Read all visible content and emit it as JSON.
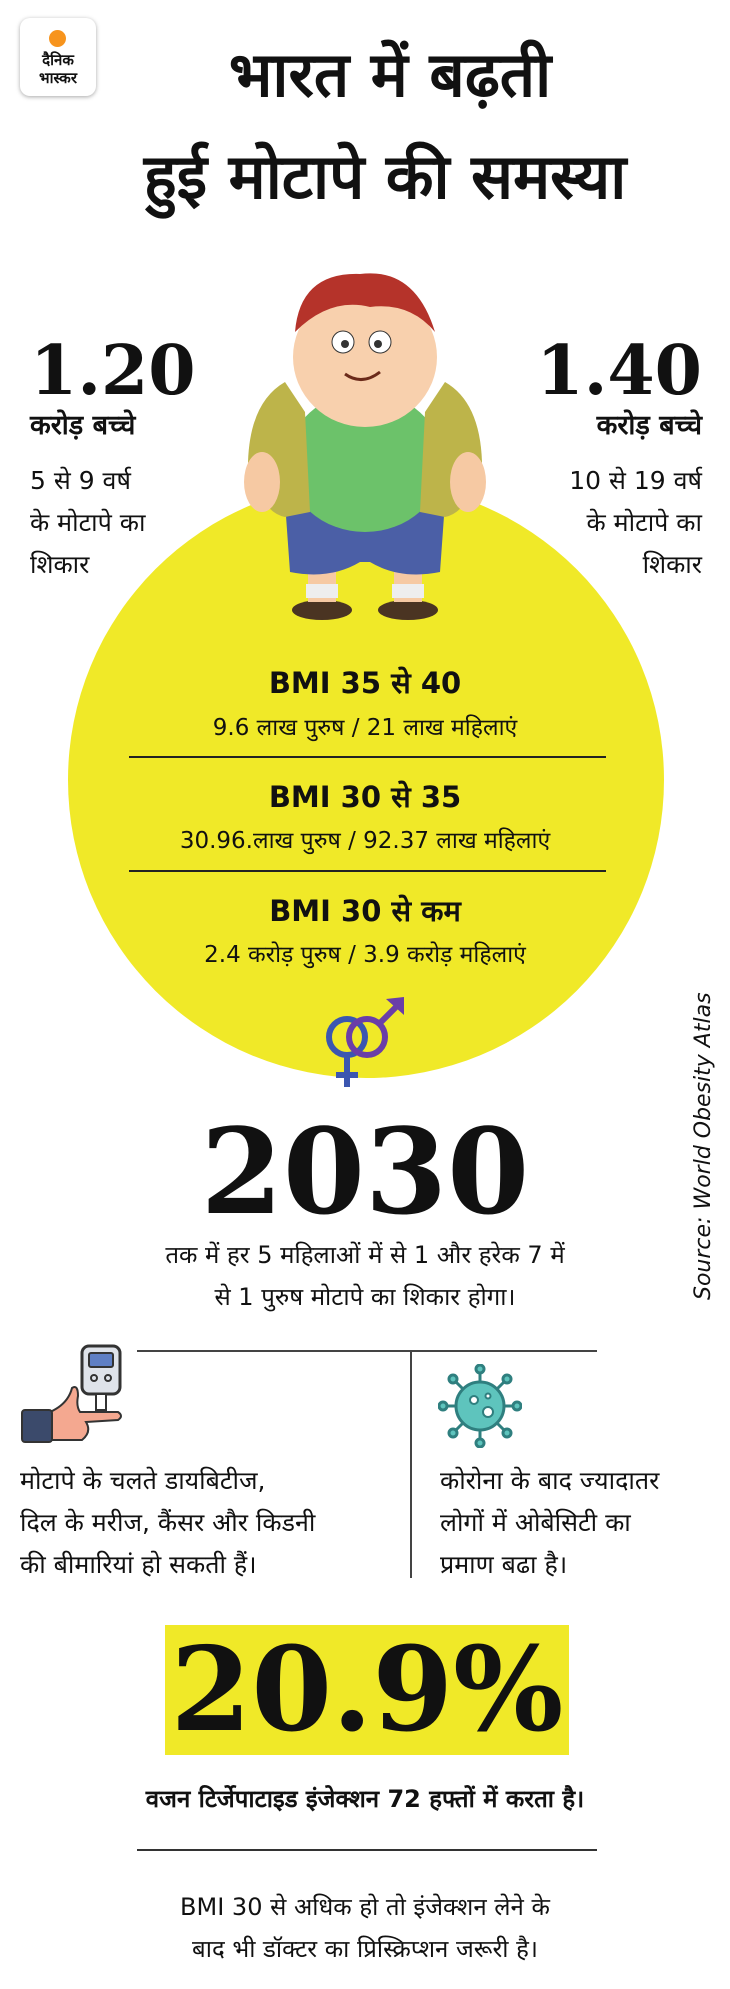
{
  "brand": {
    "line1": "दैनिक",
    "line2": "भास्कर",
    "accent": "#f7941d"
  },
  "title": {
    "line1": "भारत में बढ़ती",
    "line2": "हुई मोटापे की समस्या"
  },
  "stats": [
    {
      "number": "1.20",
      "unit": "करोड़ बच्चे",
      "desc": [
        "5 से 9 वर्ष",
        "के मोटापे का",
        "शिकार"
      ]
    },
    {
      "number": "1.40",
      "unit": "करोड़ बच्चे",
      "desc": [
        "10 से 19 वर्ष",
        "के मोटापे का",
        "शिकार"
      ]
    }
  ],
  "bmi": [
    {
      "heading": "BMI 35 से 40",
      "detail": "9.6 लाख पुरुष / 21 लाख महिलाएं"
    },
    {
      "heading": "BMI 30 से 35",
      "detail": "30.96.लाख पुरुष / 92.37 लाख महिलाएं"
    },
    {
      "heading": "BMI 30 से कम",
      "detail": "2.4 करोड़ पुरुष / 3.9 करोड़ महिलाएं"
    }
  ],
  "projection": {
    "year": "2030",
    "text": [
      "तक में हर 5 महिलाओं में से 1 और हरेक 7 में",
      "से 1 पुरुष मोटापे का शिकार होगा।"
    ]
  },
  "source": "Source: World Obesity Atlas",
  "facts": {
    "left": [
      "मोटापे के चलते डायबिटीज,",
      "दिल के मरीज, कैंसर और किडनी",
      "की बीमारियां हो सकती हैं।"
    ],
    "right": [
      "कोरोना के बाद ज्यादातर",
      "लोगों में ओबेसिटी का",
      "प्रमाण बढा है।"
    ]
  },
  "injection": {
    "percent": "20.9%",
    "caption": "वजन टिर्जेपाटाइड इंजेक्शन 72 हफ्तों में करता है।",
    "note": [
      "BMI 30 से अधिक हो तो इंजेक्शन लेने के",
      "बाद भी डॉक्टर का प्रिस्क्रिप्शन जरूरी है।"
    ]
  },
  "colors": {
    "yellow": "#f0e928",
    "text": "#111111"
  }
}
